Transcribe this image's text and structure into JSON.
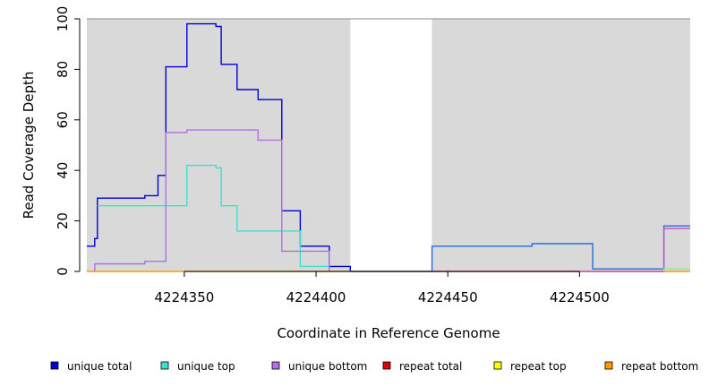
{
  "chart_data": {
    "type": "line",
    "step": true,
    "xlabel": "Coordinate in Reference Genome",
    "ylabel": "Read Coverage Depth",
    "xlim": [
      4224313,
      4224542
    ],
    "ylim": [
      0,
      100
    ],
    "x_ticks": [
      4224350,
      4224400,
      4224450,
      4224500
    ],
    "y_ticks": [
      0,
      20,
      40,
      60,
      80,
      100
    ],
    "background_color": "#d9d9d9",
    "gap_regions": [
      [
        4224413,
        4224444
      ]
    ],
    "legend_position": "bottom",
    "series": [
      {
        "name": "unique total",
        "color": "#0000dd",
        "points": [
          [
            4224313,
            10
          ],
          [
            4224316,
            13
          ],
          [
            4224317,
            29
          ],
          [
            4224335,
            30
          ],
          [
            4224340,
            30
          ],
          [
            4224340,
            38
          ],
          [
            4224343,
            81
          ],
          [
            4224351,
            98
          ],
          [
            4224362,
            97
          ],
          [
            4224364,
            82
          ],
          [
            4224370,
            72
          ],
          [
            4224378,
            68
          ],
          [
            4224387,
            24
          ],
          [
            4224394,
            10
          ],
          [
            4224405,
            2
          ],
          [
            4224413,
            0
          ]
        ]
      },
      {
        "name": "unique top",
        "color": "#40e0d0",
        "points": [
          [
            4224317,
            26
          ],
          [
            4224351,
            42
          ],
          [
            4224362,
            41
          ],
          [
            4224364,
            26
          ],
          [
            4224370,
            16
          ],
          [
            4224394,
            2
          ],
          [
            4224405,
            0
          ]
        ]
      },
      {
        "name": "unique bottom",
        "color": "#b070e0",
        "points": [
          [
            4224316,
            0
          ],
          [
            4224316,
            3
          ],
          [
            4224335,
            4
          ],
          [
            4224343,
            12
          ],
          [
            4224343,
            55
          ],
          [
            4224351,
            56
          ],
          [
            4224378,
            52
          ],
          [
            4224387,
            8
          ],
          [
            4224405,
            0
          ]
        ]
      },
      {
        "name": "repeat total",
        "color": "#dd0000",
        "points": []
      },
      {
        "name": "repeat top",
        "color": "#ffff00",
        "points": []
      },
      {
        "name": "repeat bottom",
        "color": "#ff9900",
        "points": [
          [
            4224313,
            0
          ],
          [
            4224542,
            0
          ]
        ]
      },
      {
        "name": "",
        "color": "#1f6fe0",
        "points": [
          [
            4224413,
            0
          ],
          [
            4224444,
            0
          ],
          [
            4224444,
            10
          ],
          [
            4224482,
            11
          ],
          [
            4224505,
            1
          ],
          [
            4224532,
            18
          ],
          [
            4224542,
            18
          ]
        ]
      },
      {
        "name": "",
        "color": "#cc4cc4",
        "points": [
          [
            4224444,
            0
          ],
          [
            4224532,
            0
          ],
          [
            4224532,
            17
          ],
          [
            4224542,
            17
          ]
        ]
      },
      {
        "name": "",
        "color": "#90ee90",
        "points": [
          [
            4224532,
            0
          ],
          [
            4224532,
            1
          ],
          [
            4224542,
            1
          ]
        ]
      }
    ]
  }
}
